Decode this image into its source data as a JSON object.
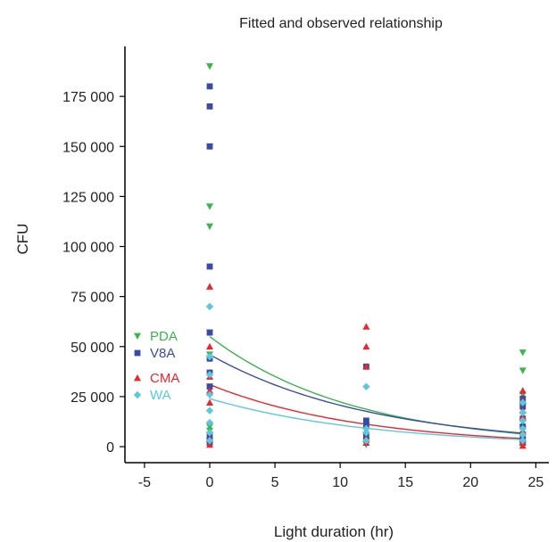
{
  "chart_data": {
    "type": "scatter",
    "title": "Fitted and observed relationship",
    "xlabel": "Light duration (hr)",
    "ylabel": "CFU",
    "xlim": [
      -6.5,
      26
    ],
    "ylim": [
      -8000,
      200000
    ],
    "xticks": [
      -5,
      0,
      5,
      10,
      15,
      20,
      25
    ],
    "xtick_labels": [
      "-5",
      "0",
      "5",
      "10",
      "15",
      "20",
      "25"
    ],
    "yticks": [
      0,
      25000,
      50000,
      75000,
      100000,
      125000,
      150000,
      175000
    ],
    "ytick_labels": [
      "0",
      "25 000",
      "50 000",
      "75 000",
      "100 000",
      "125 000",
      "150 000",
      "175 000"
    ],
    "grid": false,
    "legend_position": "left",
    "series": [
      {
        "name": "PDA",
        "color": "#3cb54a",
        "marker": "triangle-down",
        "points": [
          [
            0,
            190000
          ],
          [
            0,
            150000
          ],
          [
            0,
            120000
          ],
          [
            0,
            110000
          ],
          [
            0,
            57000
          ],
          [
            0,
            46000
          ],
          [
            0,
            44000
          ],
          [
            0,
            30000
          ],
          [
            0,
            10000
          ],
          [
            0,
            8000
          ],
          [
            0,
            6000
          ],
          [
            0,
            3000
          ],
          [
            0,
            1000
          ],
          [
            12,
            10000
          ],
          [
            12,
            6000
          ],
          [
            12,
            3000
          ],
          [
            12,
            1000
          ],
          [
            24,
            47000
          ],
          [
            24,
            38000
          ],
          [
            24,
            26000
          ],
          [
            24,
            20000
          ],
          [
            24,
            16000
          ],
          [
            24,
            12000
          ],
          [
            24,
            9000
          ],
          [
            24,
            6000
          ],
          [
            24,
            3000
          ],
          [
            24,
            1000
          ]
        ],
        "fit": {
          "a": 55000,
          "k": 0.09
        }
      },
      {
        "name": "V8A",
        "color": "#3a4aa8",
        "marker": "square",
        "points": [
          [
            0,
            180000
          ],
          [
            0,
            170000
          ],
          [
            0,
            150000
          ],
          [
            0,
            90000
          ],
          [
            0,
            57000
          ],
          [
            0,
            44000
          ],
          [
            0,
            37000
          ],
          [
            0,
            30000
          ],
          [
            0,
            5000
          ],
          [
            0,
            2000
          ],
          [
            12,
            40000
          ],
          [
            12,
            13000
          ],
          [
            12,
            11000
          ],
          [
            12,
            5000
          ],
          [
            24,
            24000
          ],
          [
            24,
            20000
          ],
          [
            24,
            14000
          ],
          [
            24,
            10000
          ],
          [
            24,
            5000
          ],
          [
            24,
            2000
          ]
        ],
        "fit": {
          "a": 46000,
          "k": 0.08
        }
      },
      {
        "name": "CMA",
        "color": "#e8262d",
        "marker": "triangle-up",
        "points": [
          [
            0,
            80000
          ],
          [
            0,
            50000
          ],
          [
            0,
            35000
          ],
          [
            0,
            28000
          ],
          [
            0,
            22000
          ],
          [
            0,
            4000
          ],
          [
            0,
            1000
          ],
          [
            12,
            60000
          ],
          [
            12,
            50000
          ],
          [
            12,
            40000
          ],
          [
            12,
            8000
          ],
          [
            12,
            4000
          ],
          [
            12,
            2000
          ],
          [
            24,
            28000
          ],
          [
            24,
            23000
          ],
          [
            24,
            18000
          ],
          [
            24,
            15000
          ],
          [
            24,
            8000
          ],
          [
            24,
            4000
          ],
          [
            24,
            2000
          ],
          [
            24,
            500
          ]
        ],
        "fit": {
          "a": 31000,
          "k": 0.085
        }
      },
      {
        "name": "WA",
        "color": "#5bc8dd",
        "marker": "diamond",
        "points": [
          [
            0,
            70000
          ],
          [
            0,
            45000
          ],
          [
            0,
            36000
          ],
          [
            0,
            26000
          ],
          [
            0,
            18000
          ],
          [
            0,
            12000
          ],
          [
            0,
            7000
          ],
          [
            0,
            3000
          ],
          [
            12,
            30000
          ],
          [
            12,
            9000
          ],
          [
            12,
            7000
          ],
          [
            12,
            3000
          ],
          [
            24,
            22000
          ],
          [
            24,
            17000
          ],
          [
            24,
            13000
          ],
          [
            24,
            9000
          ],
          [
            24,
            6000
          ],
          [
            24,
            3000
          ]
        ],
        "fit": {
          "a": 24000,
          "k": 0.08
        }
      }
    ]
  }
}
